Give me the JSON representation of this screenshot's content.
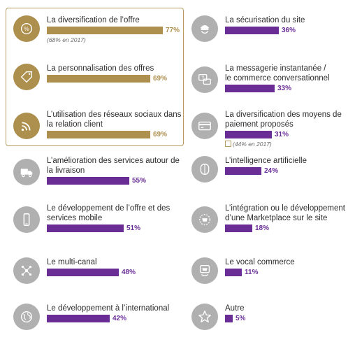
{
  "colors": {
    "gold": "#ad8f4e",
    "purple": "#6a2d96",
    "gray_circle": "#b0b0b0",
    "gold_circle": "#ad8f4e",
    "box_border": "#b69a5e"
  },
  "chart_data": {
    "type": "bar",
    "orientation": "horizontal",
    "unit": "%",
    "xlim": [
      0,
      100
    ],
    "left_column": [
      {
        "label": "La diversification de l’offre",
        "value": 77,
        "value_label": "77%",
        "note": "(68% en 2017)",
        "icon": "percent-tag-icon",
        "highlight": true
      },
      {
        "label": "La personnalisation des offres",
        "value": 69,
        "value_label": "69%",
        "icon": "price-tag-icon",
        "highlight": true
      },
      {
        "label": "L’utilisation des réseaux sociaux dans\nla relation client",
        "value": 69,
        "value_label": "69%",
        "icon": "wifi-signal-icon",
        "highlight": true
      },
      {
        "label": "L’amélioration des services autour de\nla livraison",
        "value": 55,
        "value_label": "55%",
        "icon": "delivery-truck-icon",
        "highlight": false
      },
      {
        "label": "Le développement de l’offre et des\nservices mobile",
        "value": 51,
        "value_label": "51%",
        "icon": "smartphone-icon",
        "highlight": false
      },
      {
        "label": "Le multi-canal",
        "value": 48,
        "value_label": "48%",
        "icon": "network-nodes-icon",
        "highlight": false
      },
      {
        "label": "Le développement à l’international",
        "value": 42,
        "value_label": "42%",
        "icon": "globe-icon",
        "highlight": false
      }
    ],
    "right_column": [
      {
        "label": "La sécurisation du site",
        "value": 36,
        "value_label": "36%",
        "icon": "hacker-icon"
      },
      {
        "label": "La messagerie instantanée /\nle commerce conversationnel",
        "value": 33,
        "value_label": "33%",
        "icon": "chat-cart-icon"
      },
      {
        "label": "La diversification des moyens de\npaiement proposés",
        "value": 31,
        "value_label": "31%",
        "note": "(44% en 2017)",
        "icon": "credit-card-icon"
      },
      {
        "label": "L’intelligence artificielle",
        "value": 24,
        "value_label": "24%",
        "icon": "brain-icon"
      },
      {
        "label": "L’intégration ou le développement\nd’une Marketplace sur le site",
        "value": 18,
        "value_label": "18%",
        "icon": "marketplace-icon"
      },
      {
        "label": "Le vocal commerce",
        "value": 11,
        "value_label": "11%",
        "icon": "voice-cart-icon"
      },
      {
        "label": "Autre",
        "value": 5,
        "value_label": "5%",
        "icon": "star-icon"
      }
    ]
  }
}
